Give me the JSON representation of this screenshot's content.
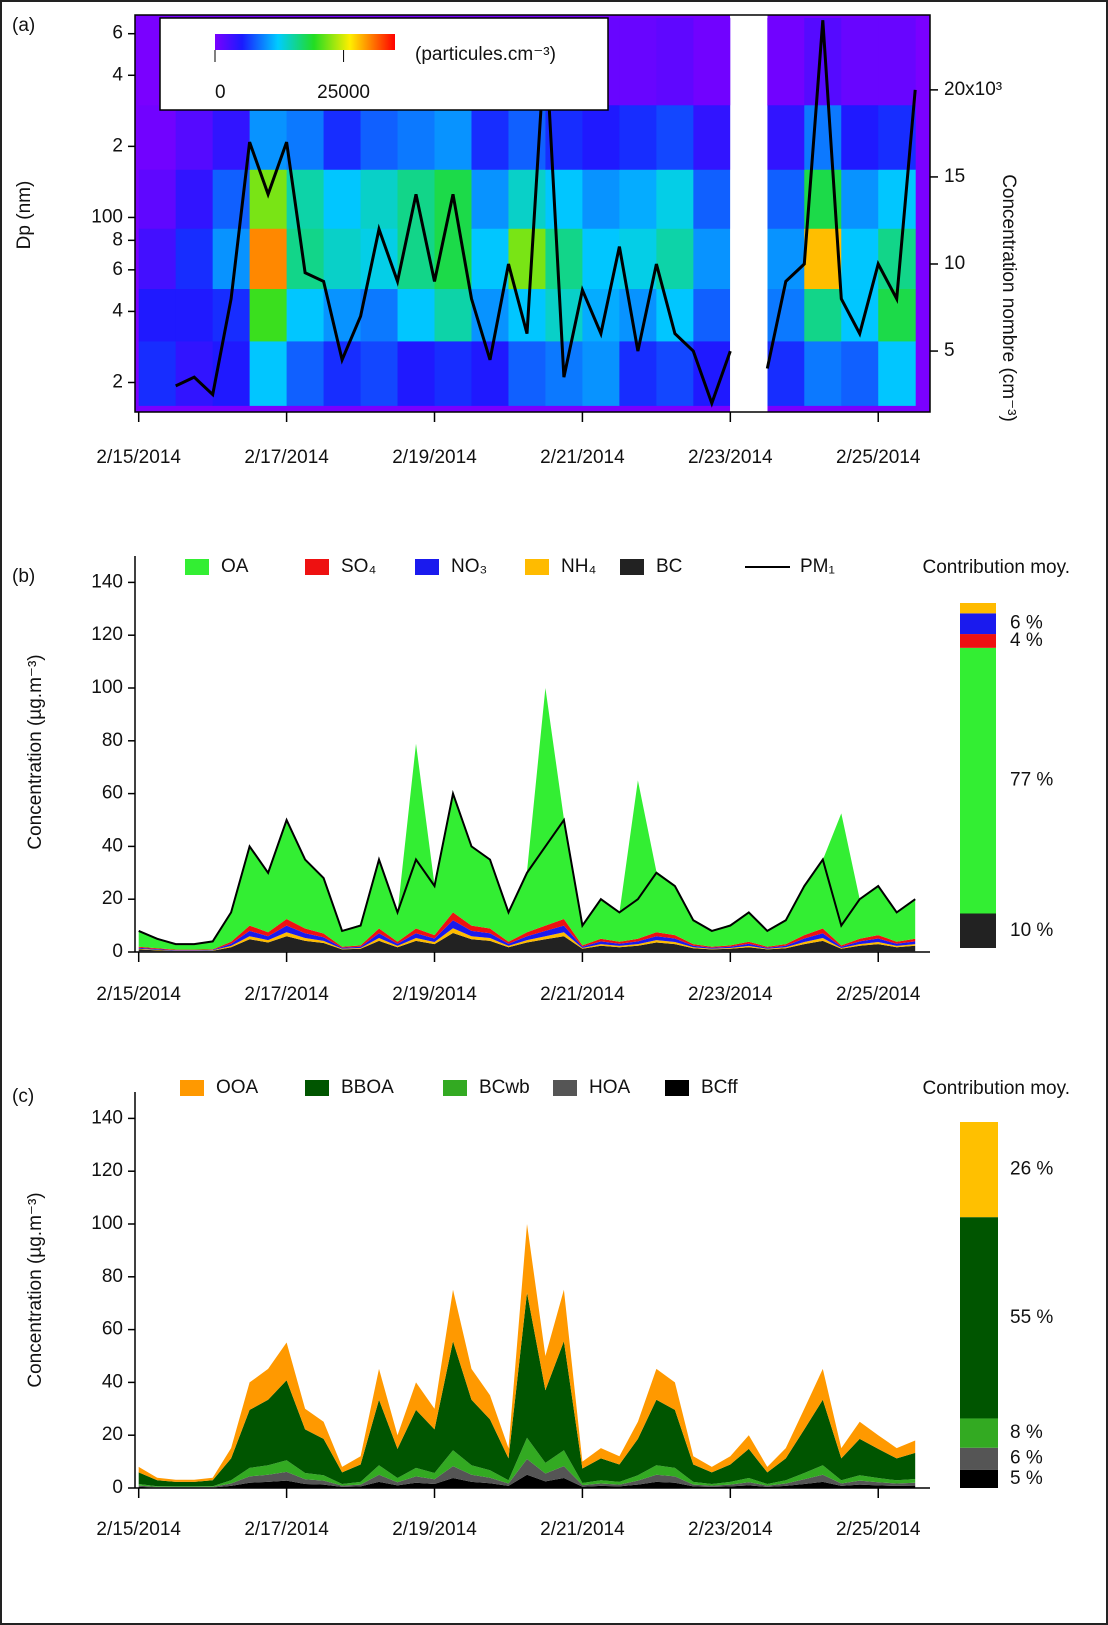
{
  "chart_data": [
    {
      "type": "heatmap",
      "panel": "(a)",
      "ylabel": "Dp (nm)",
      "y2label": "Concentration nombre (cm⁻³)",
      "log_y": true,
      "x_bins": [
        0,
        0.5,
        1,
        1.5,
        2,
        2.5,
        3,
        3.5,
        4,
        4.5,
        5,
        5.5,
        6,
        6.5,
        7,
        7.5,
        8,
        8.5,
        9,
        9.5,
        10,
        10.5
      ],
      "y_bins": [
        16,
        30,
        50,
        90,
        160,
        300,
        700
      ],
      "z": [
        [
          6000,
          4000,
          5000,
          12000,
          8000,
          6000,
          7000,
          5000,
          6000,
          5000,
          8000,
          9000,
          10000,
          6000,
          7000,
          5000,
          null,
          6000,
          9000,
          8000,
          12000
        ],
        [
          5000,
          5000,
          6000,
          20000,
          12000,
          10000,
          9000,
          12000,
          15000,
          10000,
          12000,
          14000,
          11000,
          10000,
          12000,
          8000,
          null,
          9000,
          16000,
          12000,
          18000
        ],
        [
          3000,
          6000,
          10000,
          30000,
          16000,
          14000,
          13000,
          16000,
          18000,
          12000,
          22000,
          16000,
          12000,
          13000,
          15000,
          10000,
          null,
          10000,
          28000,
          12000,
          16000
        ],
        [
          1500,
          4000,
          8000,
          22000,
          15000,
          12000,
          14000,
          16000,
          18000,
          10000,
          14000,
          12000,
          10000,
          11000,
          13000,
          8000,
          null,
          8000,
          18000,
          10000,
          12000
        ],
        [
          500,
          2000,
          4000,
          10000,
          9000,
          6000,
          8000,
          9000,
          10000,
          6000,
          8000,
          6000,
          5000,
          6000,
          7000,
          4000,
          null,
          4000,
          9000,
          5000,
          6000
        ],
        [
          0,
          500,
          1000,
          2000,
          2000,
          1000,
          1500,
          1500,
          2000,
          1000,
          1500,
          1000,
          1000,
          1000,
          1500,
          500,
          null,
          500,
          2000,
          1000,
          1000
        ]
      ],
      "colorbar": {
        "label": "(particules.cm⁻³)",
        "lim": [
          0,
          35000
        ],
        "ticks": [
          0,
          25000
        ]
      },
      "x": [
        0,
        0.25,
        0.5,
        0.75,
        1,
        1.25,
        1.5,
        1.75,
        2,
        2.25,
        2.5,
        2.75,
        3,
        3.25,
        3.5,
        3.75,
        4,
        4.25,
        4.5,
        4.75,
        5,
        5.25,
        5.5,
        5.75,
        6,
        6.25,
        6.5,
        6.75,
        7,
        7.25,
        7.5,
        7.75,
        8,
        8.25,
        8.5,
        8.75,
        9,
        9.25,
        9.5,
        9.75,
        10,
        10.25,
        10.5
      ],
      "series": [
        {
          "color": "#000000",
          "axis": "y2",
          "values": [
            8000,
            null,
            3000,
            3500,
            2500,
            8000,
            17000,
            14000,
            17000,
            9500,
            9000,
            4500,
            7000,
            12000,
            9000,
            14000,
            9000,
            14000,
            8000,
            4500,
            10000,
            6000,
            23000,
            3500,
            8500,
            6000,
            11000,
            5000,
            10000,
            6000,
            5000,
            2000,
            5000,
            null,
            4000,
            9000,
            10000,
            24000,
            8000,
            6000,
            10000,
            8000,
            20000
          ]
        }
      ],
      "xlim": [
        -0.05,
        10.7
      ],
      "xticks": [
        {
          "value": 0,
          "label": "2/15/2014"
        },
        {
          "value": 2,
          "label": "2/17/2014"
        },
        {
          "value": 4,
          "label": "2/19/2014"
        },
        {
          "value": 6,
          "label": "2/21/2014"
        },
        {
          "value": 8,
          "label": "2/23/2014"
        },
        {
          "value": 10,
          "label": "2/25/2014"
        }
      ],
      "ylim": [
        15,
        720
      ],
      "yticks": [
        {
          "value": 20,
          "label": "2"
        },
        {
          "value": 40,
          "label": "4"
        },
        {
          "value": 60,
          "label": "6"
        },
        {
          "value": 80,
          "label": "8"
        },
        100,
        {
          "value": 200,
          "label": "2"
        },
        {
          "value": 400,
          "label": "4"
        },
        {
          "value": 600,
          "label": "6"
        }
      ],
      "y2lim": [
        1500,
        24300
      ],
      "y2ticks": [
        {
          "value": 5000,
          "label": "5"
        },
        {
          "value": 10000,
          "label": "10"
        },
        {
          "value": 15000,
          "label": "15"
        },
        {
          "value": 20000,
          "label": "20x10³"
        }
      ]
    },
    {
      "type": "area",
      "panel": "(b)",
      "ylabel": "Concentration (µg.m⁻³)",
      "contribution_title": "Contribution moy.",
      "x": [
        0,
        0.25,
        0.5,
        0.75,
        1,
        1.25,
        1.5,
        1.75,
        2,
        2.25,
        2.5,
        2.75,
        3,
        3.25,
        3.5,
        3.75,
        4,
        4.25,
        4.5,
        4.75,
        5,
        5.25,
        5.5,
        5.75,
        6,
        6.25,
        6.5,
        6.75,
        7,
        7.25,
        7.5,
        7.75,
        8,
        8.25,
        8.5,
        8.75,
        9,
        9.25,
        9.5,
        9.75,
        10,
        10.25,
        10.5
      ],
      "xlim": [
        -0.05,
        10.7
      ],
      "xticks": [
        {
          "value": 0,
          "label": "2/15/2014"
        },
        {
          "value": 2,
          "label": "2/17/2014"
        },
        {
          "value": 4,
          "label": "2/19/2014"
        },
        {
          "value": 6,
          "label": "2/21/2014"
        },
        {
          "value": 8,
          "label": "2/23/2014"
        },
        {
          "value": 10,
          "label": "2/25/2014"
        }
      ],
      "ylim": [
        0,
        150
      ],
      "yticks": [
        0,
        20,
        40,
        60,
        80,
        100,
        120,
        140
      ],
      "series": [
        {
          "name": "OA",
          "color": "#33ee33",
          "contribution": 77,
          "contribution_label": "77 %",
          "values": [
            6,
            4,
            2,
            2,
            3,
            11,
            30,
            23,
            38,
            26,
            21,
            6,
            8,
            26,
            11,
            70,
            19,
            45,
            30,
            26,
            11,
            23,
            90,
            38,
            8,
            15,
            11,
            60,
            23,
            19,
            9,
            6,
            8,
            11,
            6,
            9,
            19,
            26,
            50,
            15,
            19,
            11,
            15
          ]
        },
        {
          "name": "SO₄",
          "color": "#ee1111",
          "contribution": 4,
          "contribution_label": "4 %",
          "values": [
            0.4,
            0.3,
            0.2,
            0.2,
            0.2,
            0.8,
            2,
            1.5,
            2.5,
            1.8,
            1.4,
            0.4,
            0.5,
            1.8,
            0.8,
            1.8,
            1.3,
            3,
            2,
            1.8,
            0.8,
            1.5,
            2,
            2.5,
            0.5,
            1,
            0.8,
            1,
            1.5,
            1.3,
            0.6,
            0.4,
            0.5,
            0.8,
            0.4,
            0.6,
            1.3,
            1.8,
            0.5,
            1,
            1.3,
            0.8,
            1
          ]
        },
        {
          "name": "NO₃",
          "color": "#1a1aee",
          "contribution": 6,
          "contribution_label": "6 %",
          "values": [
            0.4,
            0.3,
            0.2,
            0.2,
            0.2,
            0.8,
            2,
            1.5,
            2.5,
            1.8,
            1.4,
            0.4,
            0.5,
            1.8,
            0.8,
            1.8,
            1.3,
            3,
            2,
            1.8,
            0.8,
            1.5,
            2,
            2.5,
            0.5,
            1,
            0.8,
            1,
            1.5,
            1.3,
            0.6,
            0.4,
            0.5,
            0.8,
            0.4,
            0.6,
            1.3,
            1.8,
            0.5,
            1,
            1.3,
            0.8,
            1
          ]
        },
        {
          "name": "NH₄",
          "color": "#ffbb00",
          "contribution": 3,
          "values": [
            0.2,
            0.2,
            0.1,
            0.1,
            0.1,
            0.5,
            1.2,
            0.9,
            1.5,
            1.1,
            0.8,
            0.2,
            0.3,
            1.1,
            0.5,
            1.1,
            0.8,
            1.8,
            1.2,
            1.1,
            0.5,
            0.9,
            1.2,
            1.5,
            0.3,
            0.6,
            0.5,
            0.6,
            0.9,
            0.8,
            0.4,
            0.2,
            0.3,
            0.5,
            0.2,
            0.4,
            0.8,
            1.1,
            0.3,
            0.6,
            0.8,
            0.5,
            0.6
          ]
        },
        {
          "name": "BC",
          "color": "#222222",
          "contribution": 10,
          "contribution_label": "10 %",
          "values": [
            1,
            0.6,
            0.4,
            0.4,
            0.5,
            1.8,
            4.8,
            3.6,
            6,
            4.2,
            3.4,
            1,
            1.2,
            4.2,
            1.8,
            4.2,
            3,
            7.2,
            4.8,
            4.2,
            1.8,
            3.6,
            4.8,
            6,
            1.2,
            2.4,
            1.8,
            2.4,
            3.6,
            3,
            1.4,
            1,
            1.2,
            1.8,
            1,
            1.4,
            3,
            4.2,
            1.2,
            2.4,
            3,
            1.8,
            2.4
          ]
        }
      ],
      "line": {
        "name": "PM₁",
        "color": "#000000",
        "values": [
          8,
          5,
          3,
          3,
          4,
          15,
          40,
          30,
          50,
          35,
          28,
          8,
          10,
          35,
          15,
          35,
          25,
          60,
          40,
          35,
          15,
          30,
          40,
          50,
          10,
          20,
          15,
          20,
          30,
          25,
          12,
          8,
          10,
          15,
          8,
          12,
          25,
          35,
          10,
          20,
          25,
          15,
          20
        ]
      }
    },
    {
      "type": "area",
      "panel": "(c)",
      "ylabel": "Concentration (µg.m⁻³)",
      "contribution_title": "Contribution moy.",
      "x": [
        0,
        0.25,
        0.5,
        0.75,
        1,
        1.25,
        1.5,
        1.75,
        2,
        2.25,
        2.5,
        2.75,
        3,
        3.25,
        3.5,
        3.75,
        4,
        4.25,
        4.5,
        4.75,
        5,
        5.25,
        5.5,
        5.75,
        6,
        6.25,
        6.5,
        6.75,
        7,
        7.25,
        7.5,
        7.75,
        8,
        8.25,
        8.5,
        8.75,
        9,
        9.25,
        9.5,
        9.75,
        10,
        10.25,
        10.5
      ],
      "xlim": [
        -0.05,
        10.7
      ],
      "xticks": [
        {
          "value": 0,
          "label": "2/15/2014"
        },
        {
          "value": 2,
          "label": "2/17/2014"
        },
        {
          "value": 4,
          "label": "2/19/2014"
        },
        {
          "value": 6,
          "label": "2/21/2014"
        },
        {
          "value": 8,
          "label": "2/23/2014"
        },
        {
          "value": 10,
          "label": "2/25/2014"
        }
      ],
      "ylim": [
        0,
        150
      ],
      "yticks": [
        0,
        20,
        40,
        60,
        80,
        100,
        120,
        140
      ],
      "series": [
        {
          "name": "OOA",
          "color": "#ff9900",
          "bar_color": "#ffc000",
          "contribution": 26,
          "contribution_label": "26 %",
          "values": [
            2.1,
            1,
            0.8,
            0.8,
            1,
            3.9,
            10.4,
            11.7,
            14.3,
            7.8,
            6.5,
            2.1,
            3.1,
            11.7,
            5.2,
            10.4,
            7.8,
            19.5,
            11.7,
            9.1,
            3.9,
            26,
            13,
            19.5,
            2.6,
            3.9,
            3.1,
            6.5,
            11.7,
            10.4,
            3.1,
            2.1,
            3.1,
            5.2,
            2.1,
            3.9,
            7.8,
            11.7,
            3.9,
            6.5,
            5.2,
            3.9,
            4.7
          ]
        },
        {
          "name": "BBOA",
          "color": "#005500",
          "contribution": 55,
          "contribution_label": "55 %",
          "values": [
            4.4,
            2.2,
            1.7,
            1.7,
            2.2,
            8.3,
            22,
            24.8,
            30.3,
            16.5,
            13.8,
            4.4,
            6.6,
            24.8,
            11,
            22,
            16.5,
            41.3,
            24.8,
            19.3,
            8.3,
            55,
            27.5,
            41.3,
            5.5,
            8.3,
            6.6,
            13.8,
            24.8,
            22,
            6.6,
            4.4,
            6.6,
            11,
            4.4,
            8.3,
            16.5,
            24.8,
            8.3,
            13.8,
            11,
            8.3,
            9.9
          ]
        },
        {
          "name": "BCwb",
          "color": "#33aa22",
          "contribution": 8,
          "contribution_label": "8 %",
          "values": [
            0.6,
            0.3,
            0.2,
            0.2,
            0.3,
            1.2,
            3.2,
            3.6,
            4.4,
            2.4,
            2,
            0.6,
            1,
            3.6,
            1.6,
            3.2,
            2.4,
            6,
            3.6,
            2.8,
            1.2,
            8,
            4,
            6,
            0.8,
            1.2,
            1,
            2,
            3.6,
            3.2,
            1,
            0.6,
            1,
            1.6,
            0.6,
            1.2,
            2.4,
            3.6,
            1.2,
            2,
            1.6,
            1.2,
            1.4
          ]
        },
        {
          "name": "HOA",
          "color": "#555555",
          "contribution": 6,
          "contribution_label": "6 %",
          "values": [
            0.5,
            0.2,
            0.2,
            0.2,
            0.2,
            0.9,
            2.4,
            2.7,
            3.3,
            1.8,
            1.5,
            0.5,
            0.7,
            2.7,
            1.2,
            2.4,
            1.8,
            4.5,
            2.7,
            2.1,
            0.9,
            6,
            3,
            4.5,
            0.6,
            0.9,
            0.7,
            1.5,
            2.7,
            2.4,
            0.7,
            0.5,
            0.7,
            1.2,
            0.5,
            0.9,
            1.8,
            2.7,
            0.9,
            1.5,
            1.2,
            0.9,
            1.1
          ]
        },
        {
          "name": "BCff",
          "color": "#000000",
          "contribution": 5,
          "contribution_label": "5 %",
          "values": [
            0.4,
            0.2,
            0.2,
            0.2,
            0.2,
            0.8,
            2,
            2.3,
            2.8,
            1.5,
            1.3,
            0.4,
            0.6,
            2.3,
            1,
            2,
            1.5,
            3.8,
            2.3,
            1.8,
            0.8,
            5,
            2.5,
            3.8,
            0.5,
            0.8,
            0.6,
            1.3,
            2.3,
            2,
            0.6,
            0.4,
            0.6,
            1,
            0.4,
            0.8,
            1.5,
            2.3,
            0.8,
            1.3,
            1,
            0.8,
            0.9
          ]
        }
      ]
    }
  ]
}
